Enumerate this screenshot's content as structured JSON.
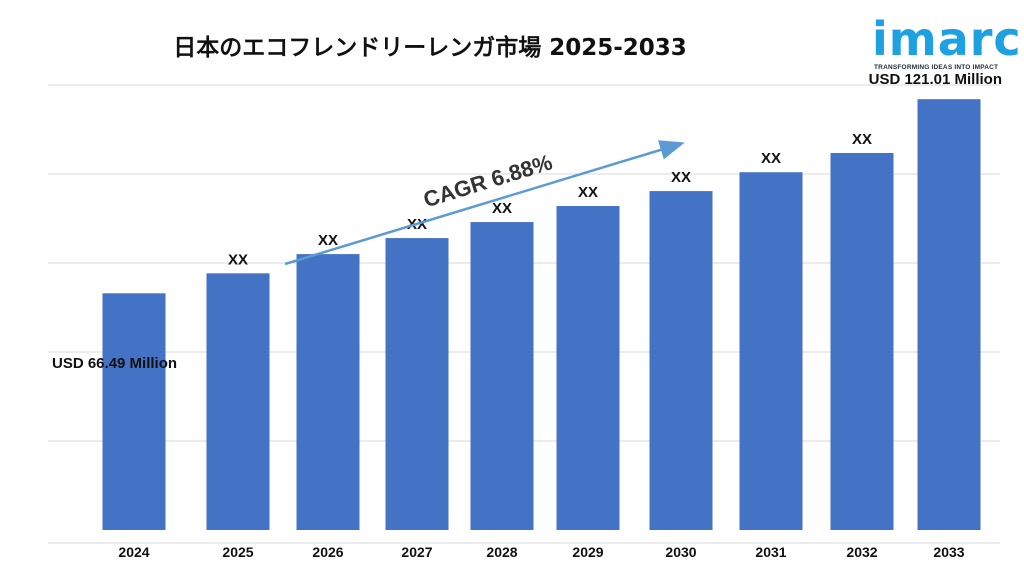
{
  "chart_data": {
    "type": "bar",
    "title": "日本のエコフレンドリーレンガ市場 2025-2033",
    "categories": [
      "2024",
      "2025",
      "2026",
      "2027",
      "2028",
      "2029",
      "2030",
      "2031",
      "2032",
      "2033"
    ],
    "values": [
      66.49,
      72.1,
      77.5,
      82.0,
      86.5,
      91.0,
      95.2,
      100.5,
      105.9,
      121.01
    ],
    "data_labels": [
      "USD 66.49 Million",
      "XX",
      "XX",
      "XX",
      "XX",
      "XX",
      "XX",
      "XX",
      "XX",
      "USD 121.01 Million"
    ],
    "ylim": [
      0,
      125
    ],
    "annotation": "CAGR 6.88%",
    "grid": true,
    "colors": {
      "bar": "#4472c4",
      "arrow": "#5b9bd5",
      "grid": "#d9d9d9"
    }
  },
  "logo": {
    "name": "imarc",
    "tagline": "TRANSFORMING IDEAS INTO IMPACT",
    "color": "#1da1e0"
  }
}
